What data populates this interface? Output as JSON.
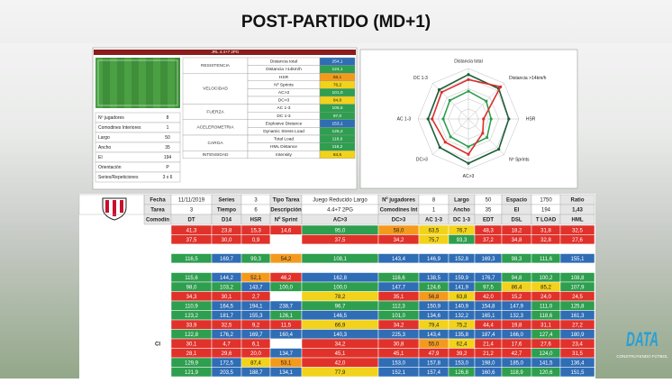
{
  "title": "POST-PARTIDO (MD+1)",
  "task_panel": {
    "header": "JRL 4.4+7 2PG",
    "groups": [
      {
        "name": "RESISTENCIA",
        "rows": [
          [
            "Distancia total",
            "254,1"
          ],
          [
            "Distancia >14km/h",
            "124,1"
          ]
        ]
      },
      {
        "name": "VELOCIDAD",
        "rows": [
          [
            "HSR",
            "56,1"
          ],
          [
            "Nº Sprints",
            "76,2"
          ],
          [
            "AC>3",
            "101,0"
          ],
          [
            "DC>3",
            "84,8"
          ]
        ]
      },
      {
        "name": "FUERZA",
        "rows": [
          [
            "AC 1-3",
            "106,5"
          ],
          [
            "DC 1-3",
            "97,0"
          ]
        ]
      },
      {
        "name": "ACELEROMETRIA",
        "rows": [
          [
            "Explosive Distance",
            "153,1"
          ],
          [
            "Dynamic Stress Load",
            "125,2"
          ]
        ]
      },
      {
        "name": "CARGA",
        "rows": [
          [
            "Total Load",
            "118,6"
          ],
          [
            "HML Distance",
            "116,2"
          ]
        ]
      },
      {
        "name": "INTENSIDAD",
        "rows": [
          [
            "Intensity",
            "84,5"
          ]
        ]
      }
    ],
    "info": [
      [
        "Nº jugadores",
        "8"
      ],
      [
        "Comodines Interiores",
        "1"
      ],
      [
        "Largo",
        "50"
      ],
      [
        "Ancho",
        "35"
      ],
      [
        "EI",
        "194"
      ],
      [
        "Orientación",
        "P"
      ],
      [
        "Series/Repeticiones",
        "3 x 6"
      ]
    ]
  },
  "chart_data": {
    "type": "radar",
    "categories": [
      "Distancia total",
      "Distancia >14km/h",
      "HSR",
      "Nº Sprints",
      "AC>3",
      "DC>3",
      "AC 1-3",
      "DC 1-3"
    ],
    "rlim": [
      0,
      100
    ],
    "grid": true,
    "series": [
      {
        "color": "#1e5e3a",
        "values": [
          88,
          85,
          80,
          85,
          88,
          80,
          80,
          82
        ]
      },
      {
        "color": "#2e9e4f",
        "values": [
          55,
          50,
          45,
          52,
          55,
          50,
          50,
          52
        ]
      },
      {
        "color": "#d9302c",
        "values": [
          78,
          90,
          30,
          40,
          70,
          65,
          72,
          75
        ]
      }
    ]
  },
  "table": {
    "header": [
      [
        "Fecha",
        "11/11/2019",
        "Series",
        "3",
        "Tipo Tarea",
        "Juego Reducido Largo",
        "Nº jugadores",
        "8",
        "Largo",
        "50",
        "Espacio",
        "1750",
        "Ratio"
      ],
      [
        "Tarea",
        "3",
        "Tiempo",
        "6",
        "Descripción",
        "4.4+7 2PG",
        "Comodines Int",
        "1",
        "Ancho",
        "35",
        "EI",
        "194",
        "1,43"
      ],
      [
        "Comodín",
        "DT",
        "D14",
        "HSR",
        "Nº Sprint",
        "AC>3",
        "DC>3",
        "AC 1-3",
        "DC 1-3",
        "EDT",
        "DSL",
        "T LOAD",
        "HML"
      ]
    ],
    "rows": [
      [
        null,
        "41,3",
        "23,8",
        "15,3",
        "14,6",
        "95,0",
        "58,0",
        "63,5",
        "76,7",
        "48,3",
        "18,2",
        "31,8",
        "32,5"
      ],
      [
        null,
        "37,5",
        "30,0",
        "0,9",
        null,
        "37,5",
        "34,2",
        "75,7",
        "93,3",
        "37,2",
        "34,8",
        "32,8",
        "27,6"
      ],
      [
        null,
        null,
        null,
        null,
        null,
        null,
        null,
        null,
        null,
        null,
        null,
        null,
        null
      ],
      [
        null,
        "116,5",
        "169,7",
        "99,3",
        "54,2",
        "108,1",
        "143,4",
        "146,9",
        "152,8",
        "169,3",
        "98,3",
        "111,6",
        "155,1"
      ],
      [
        null,
        null,
        null,
        null,
        null,
        null,
        null,
        null,
        null,
        null,
        null,
        null,
        null
      ],
      [
        null,
        "115,6",
        "144,2",
        "52,1",
        "46,2",
        "162,8",
        "116,6",
        "138,5",
        "159,9",
        "176,7",
        "94,8",
        "100,2",
        "108,8"
      ],
      [
        null,
        "98,0",
        "103,2",
        "143,7",
        "100,0",
        "100,0",
        "147,7",
        "124,6",
        "141,9",
        "97,5",
        "86,4",
        "85,2",
        "107,9"
      ],
      [
        null,
        "34,3",
        "30,1",
        "2,7",
        null,
        "78,2",
        "35,1",
        "56,8",
        "63,8",
        "42,0",
        "15,2",
        "24,0",
        "24,5"
      ],
      [
        null,
        "110,9",
        "164,5",
        "194,1",
        "238,7",
        "96,7",
        "112,3",
        "150,9",
        "140,9",
        "154,8",
        "147,9",
        "111,0",
        "125,8"
      ],
      [
        null,
        "123,2",
        "181,7",
        "155,3",
        "126,1",
        "146,5",
        "101,0",
        "134,6",
        "132,2",
        "165,1",
        "132,3",
        "118,6",
        "161,3"
      ],
      [
        null,
        "33,9",
        "32,5",
        "9,2",
        "11,5",
        "66,9",
        "34,2",
        "79,4",
        "75,2",
        "44,4",
        "19,8",
        "31,1",
        "27,2"
      ],
      [
        null,
        "122,8",
        "176,2",
        "169,7",
        "160,4",
        "140,3",
        "225,3",
        "143,4",
        "135,8",
        "187,4",
        "166,0",
        "127,4",
        "180,9"
      ],
      [
        "CI",
        "30,1",
        "4,7",
        "6,1",
        null,
        "34,2",
        "30,8",
        "55,0",
        "62,4",
        "21,4",
        "17,6",
        "27,6",
        "23,4"
      ],
      [
        null,
        "28,1",
        "29,6",
        "20,0",
        "134,7",
        "45,1",
        "45,1",
        "47,9",
        "39,2",
        "21,2",
        "42,7",
        "124,0",
        "31,5"
      ],
      [
        null,
        "129,9",
        "172,5",
        "87,4",
        "53,1",
        "42,0",
        "153,0",
        "157,8",
        "153,0",
        "198,0",
        "185,0",
        "141,5",
        "136,4"
      ],
      [
        null,
        "121,9",
        "203,5",
        "188,7",
        "134,1",
        "77,9",
        "152,1",
        "157,4",
        "126,8",
        "160,6",
        "118,9",
        "120,6",
        "151,5"
      ]
    ]
  },
  "logo": {
    "name": "DATA",
    "tagline": "CONSTRUYENDO FÚTBOL"
  }
}
